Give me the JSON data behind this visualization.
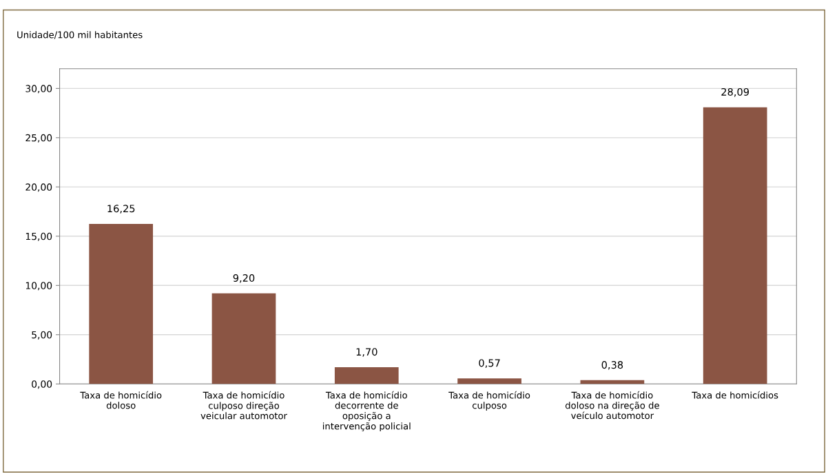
{
  "chart_data": {
    "type": "bar",
    "ylabel": "Unidade/100 mil habitantes",
    "categories": [
      "Taxa de homicídio\ndoloso",
      "Taxa de homicídio\nculposo direção\nveicular automotor",
      "Taxa de homicídio\ndecorrente de\noposição a\nintervenção policial",
      "Taxa de homicídio\nculposo",
      "Taxa de homicídio\ndoloso na direção de\nveículo automotor",
      "Taxa de homicídios"
    ],
    "values": [
      16.25,
      9.2,
      1.7,
      0.57,
      0.38,
      28.09
    ],
    "value_labels": [
      "16,25",
      "9,20",
      "1,70",
      "0,57",
      "0,38",
      "28,09"
    ],
    "color": "#8b5544",
    "ylim": [
      0,
      32
    ],
    "yticks": [
      {
        "value": 0,
        "label": "0,00"
      },
      {
        "value": 5,
        "label": "5,00"
      },
      {
        "value": 10,
        "label": "10,00"
      },
      {
        "value": 15,
        "label": "15,00"
      },
      {
        "value": 20,
        "label": "20,00"
      },
      {
        "value": 25,
        "label": "25,00"
      },
      {
        "value": 30,
        "label": "30,00"
      }
    ],
    "grid": "y",
    "legend": false
  }
}
